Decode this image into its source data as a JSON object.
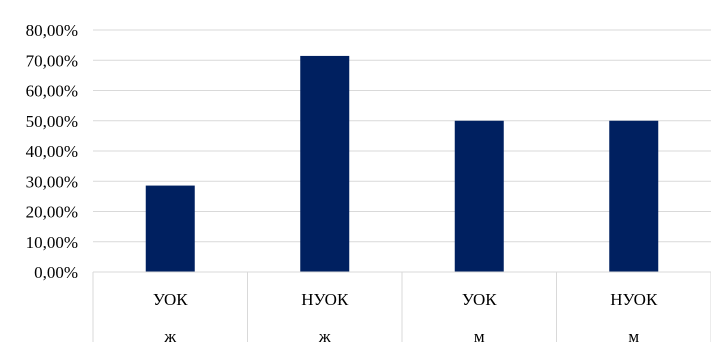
{
  "chart_data": {
    "type": "bar",
    "categories": [
      "УОК",
      "НУОК",
      "УОК",
      "НУОК"
    ],
    "groups": [
      "ж",
      "ж",
      "м",
      "м"
    ],
    "values": [
      28.57,
      71.43,
      50.0,
      50.0
    ],
    "ylim": [
      0,
      80
    ],
    "y_ticks": [
      "0,00%",
      "10,00%",
      "20,00%",
      "30,00%",
      "40,00%",
      "50,00%",
      "60,00%",
      "70,00%",
      "80,00%"
    ],
    "title": "",
    "xlabel": "",
    "ylabel": "",
    "grid": true,
    "legend": "none",
    "bar_color": "#002060"
  }
}
